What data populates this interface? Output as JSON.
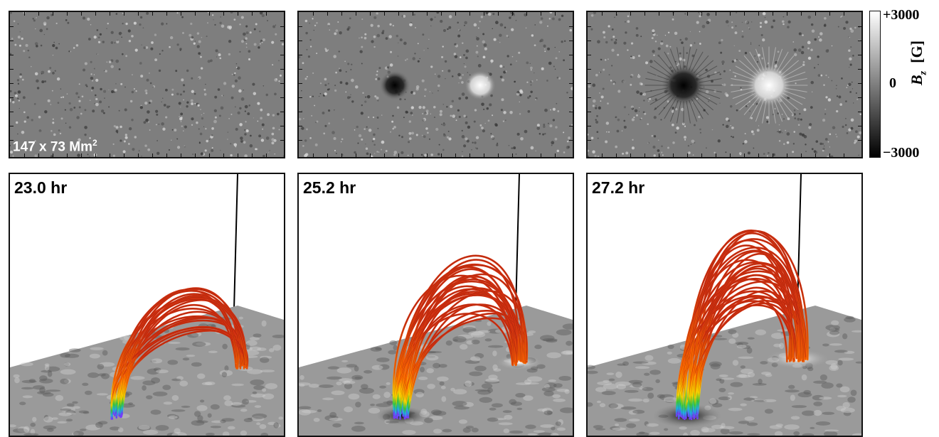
{
  "colorbar": {
    "max_label": "+3000",
    "mid_label": "0",
    "min_label": "−3000",
    "quantity_symbol": "B",
    "quantity_subscript": "z",
    "unit": "[G]",
    "gradient": [
      "#ffffff",
      "#7f7f7f",
      "#000000"
    ]
  },
  "area_label": {
    "text": "147 x 73 Mm",
    "superscript": "2"
  },
  "panels": [
    {
      "time_label": "23.0 hr",
      "field_strength": 0.15,
      "loop_count": 22,
      "loop_spread": 0.55
    },
    {
      "time_label": "25.2 hr",
      "field_strength": 0.55,
      "loop_count": 28,
      "loop_spread": 0.8
    },
    {
      "time_label": "27.2 hr",
      "field_strength": 1.0,
      "loop_count": 34,
      "loop_spread": 1.0
    }
  ],
  "colors": {
    "loop_top": "#d13010",
    "loop_mid": "#ff6a00",
    "loop_foot": [
      "#ffd800",
      "#3fd13f",
      "#1fb5e8",
      "#7a3cff"
    ],
    "positive_polarity": "#ffffff",
    "negative_polarity": "#000000"
  }
}
